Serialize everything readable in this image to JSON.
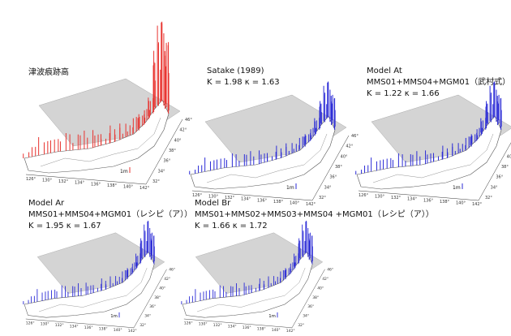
{
  "panels": [
    {
      "title": "津波痕跡高",
      "color": "#e8332f"
    },
    {
      "title": "Satake (1989)",
      "lines": [
        "K = 1.98  κ = 1.63"
      ],
      "color": "#2b2bd6"
    },
    {
      "title": "Model At",
      "lines": [
        "MMS01+MMS04+MGM01（武村式）",
        "K = 1.22  κ = 1.66"
      ],
      "color": "#2b2bd6"
    },
    {
      "title": "Model Ar",
      "lines": [
        "MMS01+MMS04+MGM01（レシピ（ア））",
        "K = 1.95  κ = 1.67"
      ],
      "color": "#2b2bd6"
    },
    {
      "title": "Model Br",
      "lines": [
        "MMS01+MMS02+MMS03+MMS04 +MGM01（レシピ（ア））",
        "K = 1.66  κ = 1.72"
      ],
      "color": "#2b2bd6"
    }
  ],
  "map_labels": {
    "longitude": [
      "126°",
      "130°",
      "132°",
      "134°",
      "136°",
      "138°",
      "140°",
      "142°"
    ],
    "latitude": [
      "32°",
      "34°",
      "36°",
      "38°",
      "40°",
      "42°",
      "46°"
    ]
  },
  "scale_label": "1m"
}
